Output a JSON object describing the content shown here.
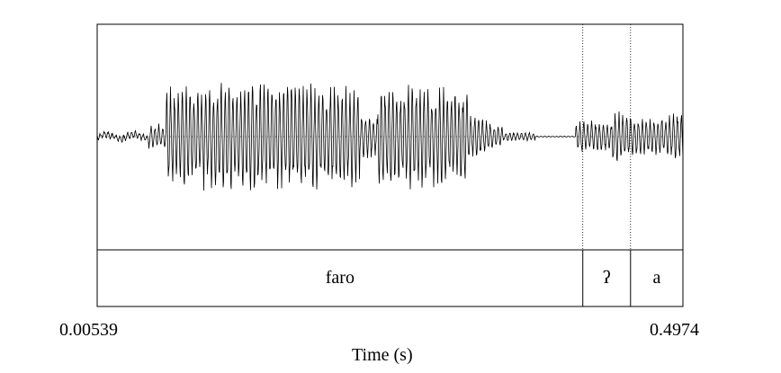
{
  "time_axis": {
    "start": "0.00539",
    "end": "0.4974",
    "title": "Time (s)"
  },
  "tier": {
    "intervals": [
      {
        "label": "faro",
        "start": 0.00539,
        "end": 0.4133
      },
      {
        "label": "ʔ",
        "start": 0.4133,
        "end": 0.4534
      },
      {
        "label": "a",
        "start": 0.4534,
        "end": 0.4974
      }
    ],
    "boundaries": [
      0.4133,
      0.4534
    ]
  },
  "colors": {
    "waveform": "#000000",
    "frame": "#000000",
    "boundary": "#000000"
  }
}
